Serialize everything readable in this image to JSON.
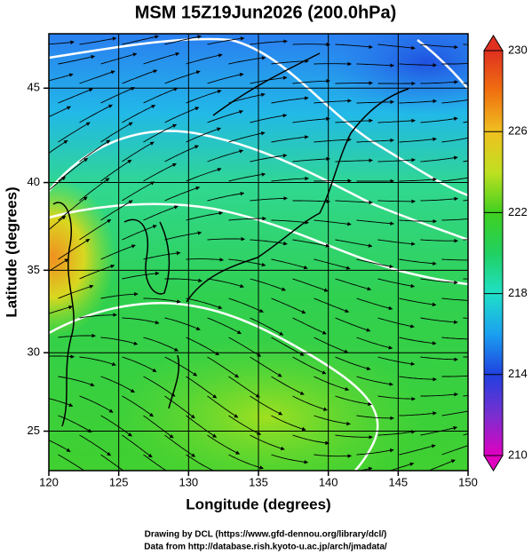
{
  "chart_data": {
    "type": "map",
    "title": "MSM 15Z19Jun2026 (200.0hPa)",
    "x_label": "Longitude (degrees)",
    "y_label": "Latitude (degrees)",
    "xlim": [
      120,
      150
    ],
    "xticks": [
      120,
      125,
      130,
      135,
      140,
      145,
      150
    ],
    "ylim": [
      22.4,
      47.7
    ],
    "yticks": [
      25,
      30,
      35,
      40,
      45
    ],
    "projection": "mercator",
    "grid": true,
    "colorbar": {
      "lim": [
        210,
        230
      ],
      "ticks": [
        210,
        214,
        218,
        222,
        226,
        230
      ],
      "colors": [
        "#e000c0",
        "#7a2fd0",
        "#2040e0",
        "#1aa0f0",
        "#20e0c8",
        "#20d060",
        "#40d020",
        "#c0e020",
        "#f0c020",
        "#f07010",
        "#e03020"
      ]
    },
    "credits": [
      "Drawing by DCL (https://www.gfd-dennou.org/library/dcl/)",
      "Data from http://database.rish.kyoto-u.ac.jp/arch/jmadata/"
    ]
  }
}
